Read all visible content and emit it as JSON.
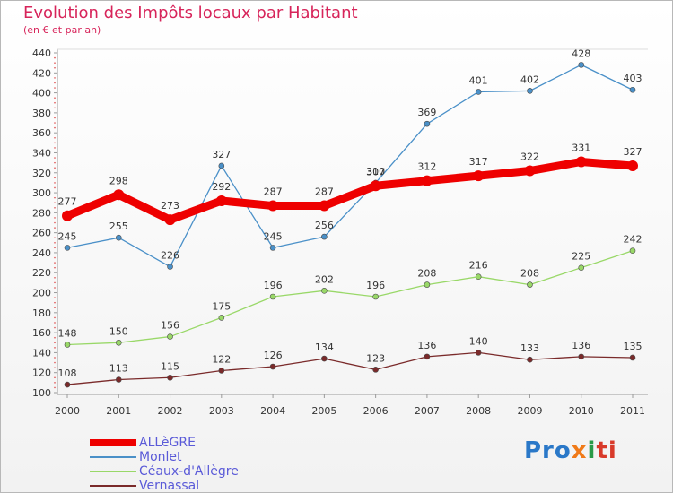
{
  "header": {
    "title": "Evolution des Impôts locaux par Habitant",
    "subtitle": "(en € et par an)"
  },
  "logo": {
    "part1": "Pro",
    "part2": "x",
    "part3": "i",
    "part4": "ti"
  },
  "chart_data": {
    "type": "line",
    "title": "Evolution des Impôts locaux par Habitant",
    "subtitle": "(en € et par an)",
    "categories": [
      "2000",
      "2001",
      "2002",
      "2003",
      "2004",
      "2005",
      "2006",
      "2007",
      "2008",
      "2009",
      "2010",
      "2011"
    ],
    "ylim": [
      100,
      440
    ],
    "yticks": [
      100,
      120,
      140,
      160,
      180,
      200,
      220,
      240,
      260,
      280,
      300,
      320,
      340,
      360,
      380,
      400,
      420,
      440
    ],
    "grid": false,
    "legend_position": "bottom-left",
    "series": [
      {
        "name": "ALLèGRE",
        "color": "#ee0000",
        "values": [
          277,
          298,
          273,
          292,
          287,
          287,
          307,
          312,
          317,
          322,
          331,
          327
        ]
      },
      {
        "name": "Monlet",
        "color": "#4a90c8",
        "values": [
          245,
          255,
          226,
          327,
          245,
          256,
          310,
          369,
          401,
          402,
          428,
          403
        ]
      },
      {
        "name": "Céaux-d'Allègre",
        "color": "#99d868",
        "values": [
          148,
          150,
          156,
          175,
          196,
          202,
          196,
          208,
          216,
          208,
          225,
          242
        ]
      },
      {
        "name": "Vernassal",
        "color": "#7a2a2a",
        "values": [
          108,
          113,
          115,
          122,
          126,
          134,
          123,
          136,
          140,
          133,
          136,
          135
        ]
      }
    ]
  }
}
